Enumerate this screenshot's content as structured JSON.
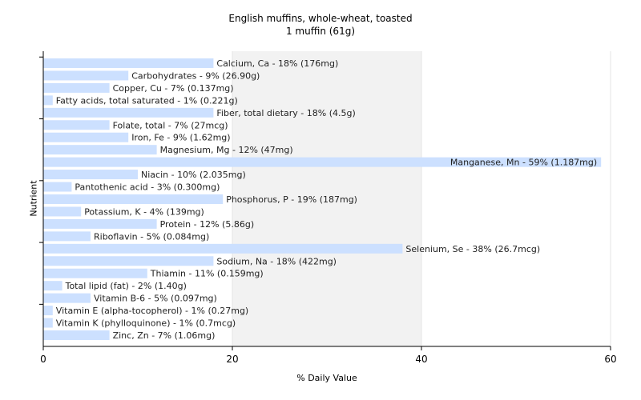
{
  "chart_data": {
    "type": "bar",
    "orientation": "horizontal",
    "title": "English muffins, whole-wheat, toasted",
    "subtitle": "1 muffin (61g)",
    "xlabel": "% Daily Value",
    "ylabel": "Nutrient",
    "xlim": [
      0,
      60
    ],
    "xticks": [
      0,
      20,
      40,
      60
    ],
    "grid": true,
    "bar_color": "#cce0ff",
    "categories": [
      "Calcium, Ca",
      "Carbohydrates",
      "Copper, Cu",
      "Fatty acids, total saturated",
      "Fiber, total dietary",
      "Folate, total",
      "Iron, Fe",
      "Magnesium, Mg",
      "Manganese, Mn",
      "Niacin",
      "Pantothenic acid",
      "Phosphorus, P",
      "Potassium, K",
      "Protein",
      "Riboflavin",
      "Selenium, Se",
      "Sodium, Na",
      "Thiamin",
      "Total lipid (fat)",
      "Vitamin B-6",
      "Vitamin E (alpha-tocopherol)",
      "Vitamin K (phylloquinone)",
      "Zinc, Zn"
    ],
    "values": [
      18,
      9,
      7,
      1,
      18,
      7,
      9,
      12,
      59,
      10,
      3,
      19,
      4,
      12,
      5,
      38,
      18,
      11,
      2,
      5,
      1,
      1,
      7
    ],
    "labels": [
      "Calcium, Ca - 18% (176mg)",
      "Carbohydrates - 9% (26.90g)",
      "Copper, Cu - 7% (0.137mg)",
      "Fatty acids, total saturated - 1% (0.221g)",
      "Fiber, total dietary - 18% (4.5g)",
      "Folate, total - 7% (27mcg)",
      "Iron, Fe - 9% (1.62mg)",
      "Magnesium, Mg - 12% (47mg)",
      "Manganese, Mn - 59% (1.187mg)",
      "Niacin - 10% (2.035mg)",
      "Pantothenic acid - 3% (0.300mg)",
      "Phosphorus, P - 19% (187mg)",
      "Potassium, K - 4% (139mg)",
      "Protein - 12% (5.86g)",
      "Riboflavin - 5% (0.084mg)",
      "Selenium, Se - 38% (26.7mcg)",
      "Sodium, Na - 18% (422mg)",
      "Thiamin - 11% (0.159mg)",
      "Total lipid (fat) - 2% (1.40g)",
      "Vitamin B-6 - 5% (0.097mg)",
      "Vitamin E (alpha-tocopherol) - 1% (0.27mg)",
      "Vitamin K (phylloquinone) - 1% (0.7mcg)",
      "Zinc, Zn - 7% (1.06mg)"
    ]
  }
}
